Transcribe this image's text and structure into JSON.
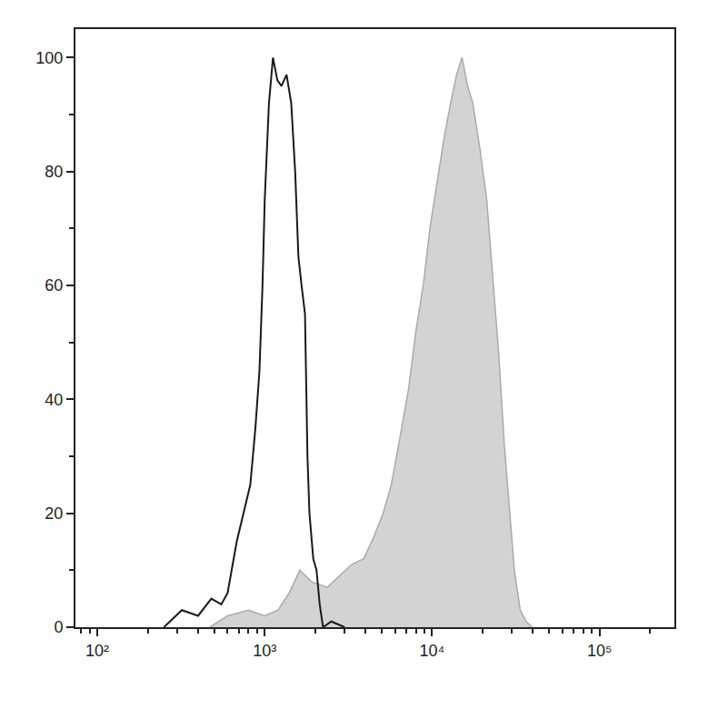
{
  "chart_data": {
    "type": "line",
    "log": "x",
    "grid": false,
    "xlim": [
      74,
      280000
    ],
    "xticks": [
      {
        "value": 100,
        "label": "10²"
      },
      {
        "value": 1000,
        "label": "10³"
      },
      {
        "value": 10000,
        "label": "10⁴"
      },
      {
        "value": 100000,
        "label": "10⁵"
      }
    ],
    "ylim": [
      0,
      105
    ],
    "yticks": [
      0,
      20,
      40,
      60,
      80,
      100
    ],
    "series": [
      {
        "type": "area",
        "color": "#aaaaaa",
        "x": [
          470,
          600,
          800,
          1000,
          1200,
          1400,
          1620,
          1900,
          2370,
          2800,
          3300,
          3900,
          4500,
          5100,
          5700,
          6400,
          7250,
          8000,
          8850,
          9700,
          10700,
          11800,
          12900,
          14000,
          15100,
          16300,
          17500,
          19300,
          21200,
          23000,
          25000,
          27000,
          29000,
          31000,
          33600,
          36500,
          39600
        ],
        "values": [
          0,
          2,
          3,
          2,
          3,
          6,
          10,
          8,
          7,
          9,
          11,
          12,
          16,
          20,
          25,
          33,
          42,
          52,
          60,
          70,
          78,
          86,
          92,
          97,
          100,
          95,
          92,
          84,
          75,
          62,
          48,
          32,
          20,
          10,
          3,
          1,
          0
        ]
      },
      {
        "type": "line",
        "color": "#1a1a1a",
        "x": [
          250,
          320,
          400,
          480,
          550,
          600,
          680,
          750,
          820,
          880,
          930,
          970,
          1000,
          1060,
          1120,
          1190,
          1260,
          1350,
          1440,
          1520,
          1590,
          1660,
          1740,
          1800,
          1850,
          1950,
          2040,
          2130,
          2230,
          2500,
          3000
        ],
        "values": [
          0,
          3,
          2,
          5,
          4,
          6,
          15,
          20,
          25,
          35,
          45,
          60,
          75,
          92,
          100,
          96,
          95,
          97,
          92,
          80,
          65,
          60,
          55,
          30,
          20,
          12,
          10,
          4,
          0,
          1,
          0
        ]
      }
    ]
  }
}
